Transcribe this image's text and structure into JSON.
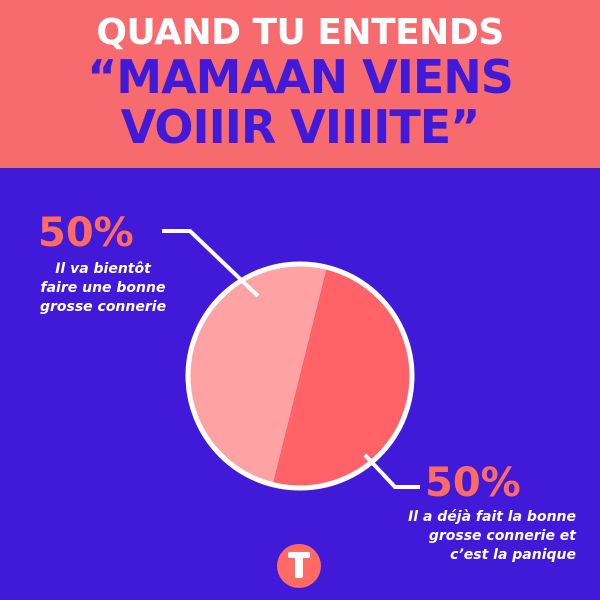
{
  "chart_data": {
    "type": "pie",
    "title": "QUAND TU ENTENDS",
    "subtitle": "“MAMAAN VIENS VOIIIR VIIIITE”",
    "categories": [
      "Il va bientôt faire une bonne grosse connerie",
      "Il a déjà fait la bonne grosse connerie et c’est la panique"
    ],
    "values": [
      50,
      50
    ],
    "value_labels": [
      "50%",
      "50%"
    ],
    "colors": [
      "#ffa2a4",
      "#ff6367"
    ]
  }
}
